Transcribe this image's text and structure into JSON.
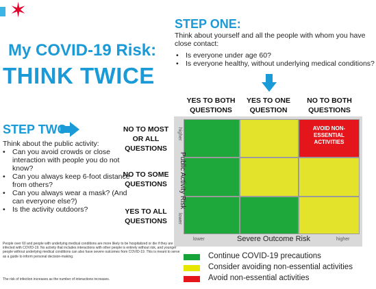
{
  "logo": {
    "star_glyph": "✶",
    "bar_color": "#3cb4e5",
    "star_color": "#e4002b"
  },
  "title": {
    "line1": "My COVID-19 Risk:",
    "line2": "THINK TWICE",
    "color": "#1a9ad6"
  },
  "step_one": {
    "heading": "STEP ONE:",
    "intro": "Think about yourself and all the people with whom you have close contact:",
    "questions": [
      "Is everyone under age 60?",
      "Is everyone healthy, without underlying medical conditions?"
    ]
  },
  "step_two": {
    "heading": "STEP TWO",
    "intro": "Think about the public activity:",
    "questions": [
      "Can you avoid crowds or close interaction with people you do not know?",
      "Can you always keep 6-foot distance from others?",
      "Can you always wear a mask? (And can everyone else?)",
      "Is the activity outdoors?"
    ]
  },
  "matrix": {
    "column_headers": [
      "YES TO BOTH QUESTIONS",
      "YES TO ONE QUESTION",
      "NO TO BOTH QUESTIONS"
    ],
    "row_headers": [
      "NO TO MOST OR ALL QUESTIONS",
      "NO TO SOME QUESTIONS",
      "YES TO ALL QUESTIONS"
    ],
    "y_axis": {
      "label": "Public Activity Risk",
      "high": "higher",
      "low": "lower"
    },
    "x_axis": {
      "label": "Severe Outcome Risk",
      "low": "lower",
      "high": "higher"
    },
    "cells": [
      [
        "green",
        "yellow",
        "red"
      ],
      [
        "green",
        "yellow",
        "yellow"
      ],
      [
        "green",
        "green",
        "yellow"
      ]
    ],
    "red_cell_text": "AVOID NON-ESSENTIAL ACTIVITIES"
  },
  "legend": [
    {
      "color": "#16a43a",
      "label": "Continue COVID-19 precautions"
    },
    {
      "color": "#e6e600",
      "label": "Consider avoiding non-essential activities"
    },
    {
      "color": "#e4161b",
      "label": "Avoid non-essential activities"
    }
  ],
  "colors": {
    "green": "#1ea83c",
    "yellow": "#e3e32b",
    "red": "#e4161b",
    "blue": "#1a9ad6"
  },
  "fine_print": {
    "paragraph1": "People over 60 and people with underlying medical conditions are more likely to be hospitalized or die if they are infected with COVID-19. No activity that includes interactions with other people is entirely without risk, and younger people without underlying medical conditions can also have severe outcomes from COVID-19. This is meant to serve as a guide to inform personal decision-making.",
    "paragraph2": "The risk of infection increases as the number of interactions increases."
  }
}
